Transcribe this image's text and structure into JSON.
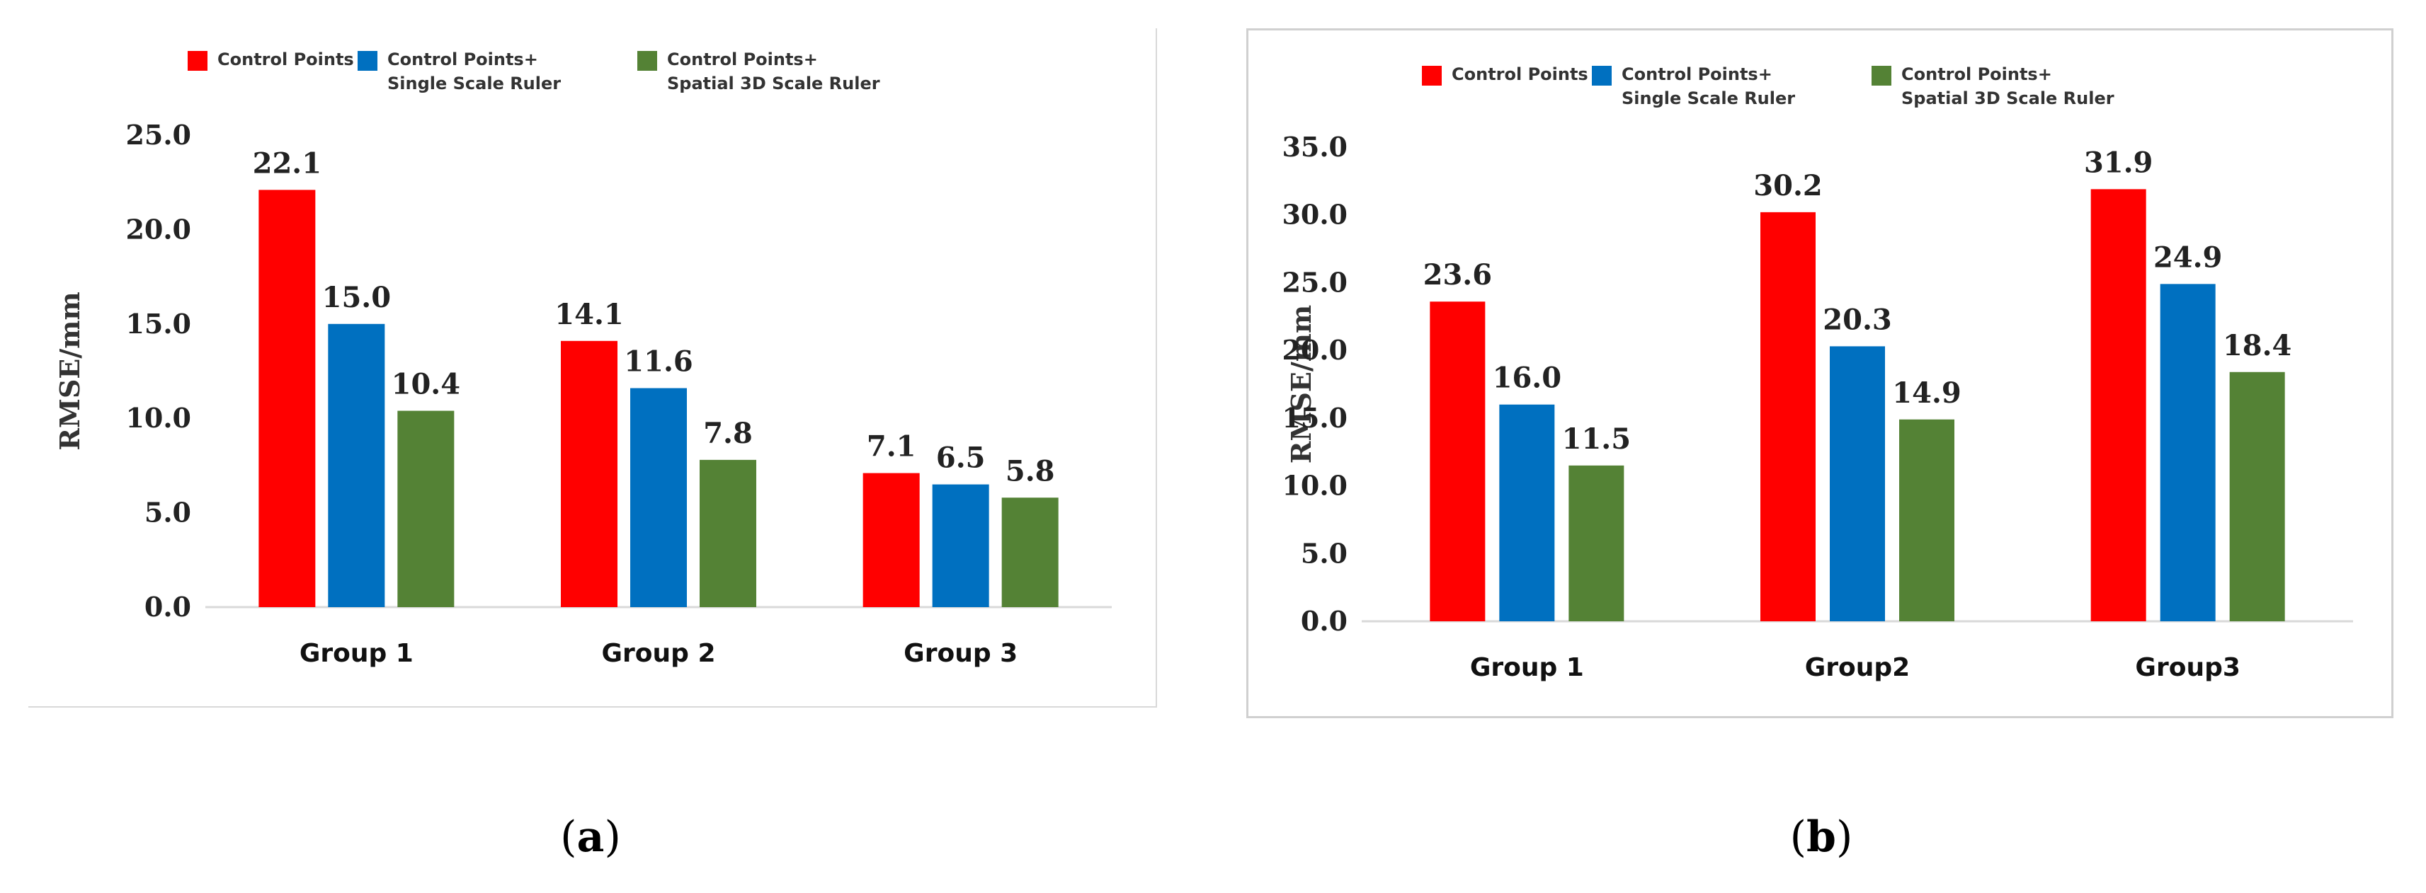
{
  "colors": {
    "series": [
      "#ff0000",
      "#0070c0",
      "#548235"
    ]
  },
  "captions": [
    {
      "open": "(",
      "letter": "a",
      "close": ")"
    },
    {
      "open": "(",
      "letter": "b",
      "close": ")"
    }
  ],
  "chart_data": [
    {
      "type": "bar",
      "categories": [
        "Group 1",
        "Group 2",
        "Group 3"
      ],
      "series": [
        {
          "name": "Control Points",
          "values": [
            22.1,
            14.1,
            7.1
          ]
        },
        {
          "name": "Control Points+\nSingle Scale Ruler",
          "values": [
            15.0,
            11.6,
            6.5
          ]
        },
        {
          "name": "Control Points+\nSpatial 3D Scale Ruler",
          "values": [
            10.4,
            7.8,
            5.8
          ]
        }
      ],
      "ylabel": "RMSE/mm",
      "ylim": [
        0,
        25
      ],
      "yticks": [
        "0.0",
        "5.0",
        "10.0",
        "15.0",
        "20.0",
        "25.0"
      ],
      "grid": false,
      "legend": "top"
    },
    {
      "type": "bar",
      "categories": [
        "Group 1",
        "Group2",
        "Group3"
      ],
      "series": [
        {
          "name": "Control Points",
          "values": [
            23.6,
            30.2,
            31.9
          ]
        },
        {
          "name": "Control Points+\nSingle Scale Ruler",
          "values": [
            16.0,
            20.3,
            24.9
          ]
        },
        {
          "name": "Control Points+\nSpatial 3D Scale Ruler",
          "values": [
            11.5,
            14.9,
            18.4
          ]
        }
      ],
      "ylabel": "RMSE/mm",
      "ylim": [
        0,
        35
      ],
      "yticks": [
        "0.0",
        "5.0",
        "10.0",
        "15.0",
        "20.0",
        "25.0",
        "30.0",
        "35.0"
      ],
      "grid": false,
      "legend": "top"
    }
  ]
}
